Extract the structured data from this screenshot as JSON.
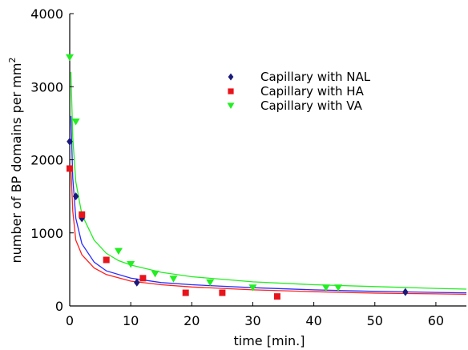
{
  "chart_data": {
    "type": "scatter",
    "title": "",
    "xlabel": "time [min.]",
    "ylabel": "number of BP domains per mm",
    "ylabel_superscript": "2",
    "xlim": [
      0,
      65
    ],
    "ylim": [
      0,
      4000
    ],
    "x_ticks": [
      0,
      10,
      20,
      30,
      40,
      50,
      60
    ],
    "y_ticks": [
      0,
      1000,
      2000,
      3000,
      4000
    ],
    "grid": false,
    "legend_position": "top-right",
    "series": [
      {
        "name": "Capillary with NAL",
        "marker": "diamond",
        "color": "#1a1a7a",
        "points": [
          {
            "x": 0,
            "y": 2250
          },
          {
            "x": 1,
            "y": 1500
          },
          {
            "x": 2,
            "y": 1200
          },
          {
            "x": 11,
            "y": 320
          },
          {
            "x": 55,
            "y": 190
          }
        ]
      },
      {
        "name": "Capillary with HA",
        "marker": "square",
        "color": "#e8141c",
        "points": [
          {
            "x": 0,
            "y": 1880
          },
          {
            "x": 2,
            "y": 1250
          },
          {
            "x": 6,
            "y": 630
          },
          {
            "x": 12,
            "y": 380
          },
          {
            "x": 19,
            "y": 180
          },
          {
            "x": 25,
            "y": 180
          },
          {
            "x": 34,
            "y": 130
          }
        ]
      },
      {
        "name": "Capillary with VA",
        "marker": "triangle-down",
        "color": "#22ee22",
        "points": [
          {
            "x": 0,
            "y": 3400
          },
          {
            "x": 1,
            "y": 2520
          },
          {
            "x": 8,
            "y": 750
          },
          {
            "x": 10,
            "y": 570
          },
          {
            "x": 14,
            "y": 440
          },
          {
            "x": 17,
            "y": 370
          },
          {
            "x": 23,
            "y": 320
          },
          {
            "x": 30,
            "y": 250
          },
          {
            "x": 42,
            "y": 250
          },
          {
            "x": 44,
            "y": 250
          }
        ]
      }
    ],
    "fits": [
      {
        "series": "Capillary with NAL",
        "color": "#2a2aff",
        "points": [
          [
            0.2,
            2600
          ],
          [
            0.5,
            1750
          ],
          [
            1,
            1200
          ],
          [
            2,
            850
          ],
          [
            4,
            600
          ],
          [
            6,
            480
          ],
          [
            10,
            380
          ],
          [
            15,
            320
          ],
          [
            20,
            290
          ],
          [
            30,
            250
          ],
          [
            40,
            220
          ],
          [
            50,
            200
          ],
          [
            60,
            185
          ],
          [
            65,
            180
          ]
        ]
      },
      {
        "series": "Capillary with HA",
        "color": "#ff2020",
        "points": [
          [
            0.2,
            1900
          ],
          [
            0.5,
            1300
          ],
          [
            1,
            900
          ],
          [
            2,
            700
          ],
          [
            4,
            520
          ],
          [
            6,
            430
          ],
          [
            10,
            340
          ],
          [
            15,
            290
          ],
          [
            20,
            260
          ],
          [
            30,
            220
          ],
          [
            40,
            195
          ],
          [
            50,
            175
          ],
          [
            60,
            165
          ],
          [
            65,
            160
          ]
        ]
      },
      {
        "series": "Capillary with VA",
        "color": "#22ee22",
        "points": [
          [
            0.2,
            3200
          ],
          [
            0.5,
            2300
          ],
          [
            1,
            1700
          ],
          [
            2,
            1250
          ],
          [
            4,
            900
          ],
          [
            6,
            720
          ],
          [
            8,
            620
          ],
          [
            10,
            560
          ],
          [
            15,
            460
          ],
          [
            20,
            400
          ],
          [
            30,
            330
          ],
          [
            40,
            290
          ],
          [
            50,
            265
          ],
          [
            60,
            240
          ],
          [
            65,
            230
          ]
        ]
      }
    ]
  }
}
